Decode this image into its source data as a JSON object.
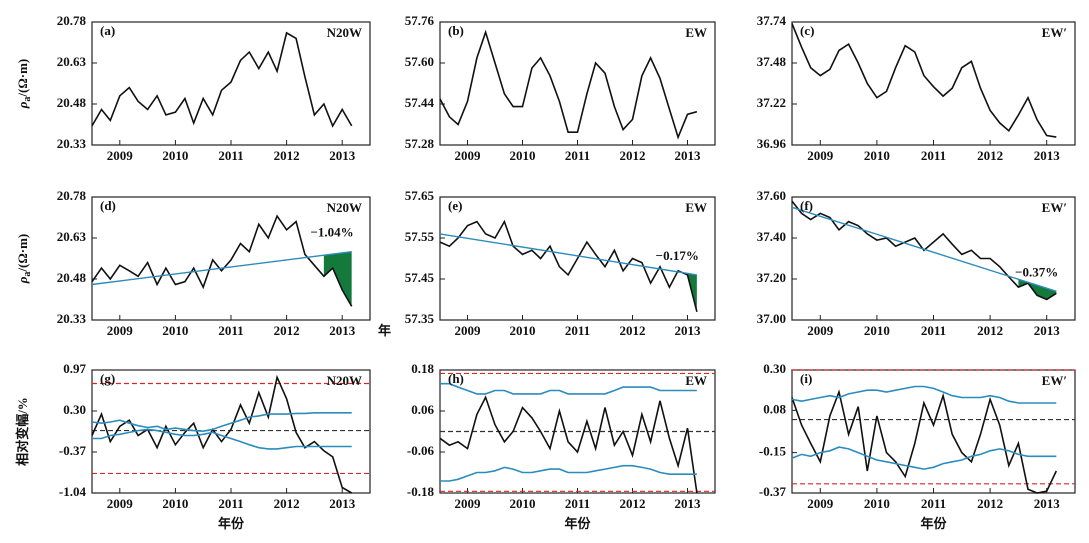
{
  "chart_data": [
    {
      "type": "line",
      "label": "(a)",
      "station": "N20W",
      "ylabel": {
        "symbol": "ρ",
        "sub": "a",
        "unit": "/(Ω·m)"
      },
      "x": [
        2008.5,
        2008.67,
        2008.83,
        2009,
        2009.17,
        2009.33,
        2009.5,
        2009.67,
        2009.83,
        2010,
        2010.17,
        2010.33,
        2010.5,
        2010.67,
        2010.83,
        2011,
        2011.17,
        2011.33,
        2011.5,
        2011.67,
        2011.83,
        2012,
        2012.17,
        2012.33,
        2012.5,
        2012.67,
        2012.83,
        2013,
        2013.17
      ],
      "xlim": [
        2008.5,
        2013.5
      ],
      "xticks": [
        2009,
        2010,
        2011,
        2012,
        2013
      ],
      "ylim": [
        20.33,
        20.78
      ],
      "yticks": [
        20.33,
        20.48,
        20.63,
        20.78
      ],
      "series": [
        {
          "color": "#111111",
          "values": [
            20.4,
            20.46,
            20.42,
            20.51,
            20.54,
            20.49,
            20.46,
            20.51,
            20.44,
            20.45,
            20.5,
            20.41,
            20.5,
            20.44,
            20.53,
            20.56,
            20.64,
            20.67,
            20.61,
            20.67,
            20.6,
            20.74,
            20.72,
            20.58,
            20.44,
            20.48,
            20.4,
            20.46,
            20.4
          ]
        }
      ]
    },
    {
      "type": "line",
      "label": "(b)",
      "station": "EW",
      "x": [
        2008.5,
        2008.67,
        2008.83,
        2009,
        2009.17,
        2009.33,
        2009.5,
        2009.67,
        2009.83,
        2010,
        2010.17,
        2010.33,
        2010.5,
        2010.67,
        2010.83,
        2011,
        2011.17,
        2011.33,
        2011.5,
        2011.67,
        2011.83,
        2012,
        2012.17,
        2012.33,
        2012.5,
        2012.67,
        2012.83,
        2013,
        2013.17
      ],
      "xlim": [
        2008.5,
        2013.5
      ],
      "xticks": [
        2009,
        2010,
        2011,
        2012,
        2013
      ],
      "ylim": [
        57.28,
        57.76
      ],
      "yticks": [
        57.28,
        57.44,
        {
          "value": 57.6,
          "label": "57.60"
        },
        57.76
      ],
      "series": [
        {
          "color": "#111111",
          "values": [
            57.46,
            57.39,
            57.36,
            57.45,
            57.62,
            57.72,
            57.6,
            57.48,
            57.43,
            57.43,
            57.58,
            57.62,
            57.55,
            57.45,
            57.33,
            57.33,
            57.48,
            57.6,
            57.56,
            57.43,
            57.34,
            57.38,
            57.55,
            57.62,
            57.54,
            57.42,
            57.31,
            57.4,
            57.41
          ]
        }
      ]
    },
    {
      "type": "line",
      "label": "(c)",
      "station": "EW′",
      "x": [
        2008.5,
        2008.67,
        2008.83,
        2009,
        2009.17,
        2009.33,
        2009.5,
        2009.67,
        2009.83,
        2010,
        2010.17,
        2010.33,
        2010.5,
        2010.67,
        2010.83,
        2011,
        2011.17,
        2011.33,
        2011.5,
        2011.67,
        2011.83,
        2012,
        2012.17,
        2012.33,
        2012.5,
        2012.67,
        2012.83,
        2013,
        2013.17
      ],
      "xlim": [
        2008.5,
        2013.5
      ],
      "xticks": [
        2009,
        2010,
        2011,
        2012,
        2013
      ],
      "ylim": [
        36.96,
        37.74
      ],
      "yticks": [
        36.96,
        37.22,
        37.48,
        37.74
      ],
      "series": [
        {
          "color": "#111111",
          "values": [
            37.73,
            37.58,
            37.45,
            37.4,
            37.44,
            37.56,
            37.6,
            37.48,
            37.35,
            37.26,
            37.3,
            37.45,
            37.59,
            37.55,
            37.4,
            37.33,
            37.27,
            37.32,
            37.45,
            37.49,
            37.32,
            37.18,
            37.1,
            37.05,
            37.15,
            37.26,
            37.12,
            37.02,
            37.01
          ]
        }
      ]
    },
    {
      "type": "line",
      "label": "(d)",
      "station": "N20W",
      "xunit": "年",
      "annotation": "−1.04%",
      "ylabel": {
        "symbol": "ρ",
        "sub": "a",
        "unit": "/(Ω·m)"
      },
      "x": [
        2008.5,
        2008.67,
        2008.83,
        2009,
        2009.17,
        2009.33,
        2009.5,
        2009.67,
        2009.83,
        2010,
        2010.17,
        2010.33,
        2010.5,
        2010.67,
        2010.83,
        2011,
        2011.17,
        2011.33,
        2011.5,
        2011.67,
        2011.83,
        2012,
        2012.17,
        2012.33,
        2012.5,
        2012.67,
        2012.83,
        2013,
        2013.17
      ],
      "xlim": [
        2008.5,
        2013.5
      ],
      "xticks": [
        2009,
        2010,
        2011,
        2012,
        2013
      ],
      "ylim": [
        20.33,
        20.78
      ],
      "yticks": [
        20.33,
        20.48,
        20.63,
        20.78
      ],
      "series": [
        {
          "color": "#111111",
          "values": [
            20.47,
            20.52,
            20.48,
            20.53,
            20.51,
            20.49,
            20.54,
            20.46,
            20.52,
            20.46,
            20.47,
            20.52,
            20.45,
            20.55,
            20.51,
            20.55,
            20.61,
            20.58,
            20.68,
            20.63,
            20.71,
            20.66,
            20.69,
            20.57,
            20.53,
            20.49,
            20.52,
            20.44,
            20.38
          ]
        }
      ],
      "trend": {
        "color": "#2b8cbe",
        "x": [
          2008.5,
          2013.17
        ],
        "values": [
          20.46,
          20.58
        ]
      },
      "fill_from": 2012.6,
      "fill_color": "#137a3c"
    },
    {
      "type": "line",
      "label": "(e)",
      "station": "EW",
      "annotation": "−0.17%",
      "x": [
        2008.5,
        2008.67,
        2008.83,
        2009,
        2009.17,
        2009.33,
        2009.5,
        2009.67,
        2009.83,
        2010,
        2010.17,
        2010.33,
        2010.5,
        2010.67,
        2010.83,
        2011,
        2011.17,
        2011.33,
        2011.5,
        2011.67,
        2011.83,
        2012,
        2012.17,
        2012.33,
        2012.5,
        2012.67,
        2012.83,
        2013,
        2013.17
      ],
      "xlim": [
        2008.5,
        2013.5
      ],
      "xticks": [
        2009,
        2010,
        2011,
        2012,
        2013
      ],
      "ylim": [
        57.35,
        57.65
      ],
      "yticks": [
        57.35,
        57.45,
        57.55,
        57.65
      ],
      "series": [
        {
          "color": "#111111",
          "values": [
            57.54,
            57.53,
            57.55,
            57.58,
            57.59,
            57.56,
            57.55,
            57.59,
            57.53,
            57.51,
            57.52,
            57.5,
            57.53,
            57.48,
            57.46,
            57.5,
            57.54,
            57.51,
            57.48,
            57.52,
            57.47,
            57.5,
            57.49,
            57.44,
            57.48,
            57.43,
            57.47,
            57.46,
            57.37
          ]
        }
      ],
      "trend": {
        "color": "#2b8cbe",
        "x": [
          2008.5,
          2013.17
        ],
        "values": [
          57.56,
          57.46
        ]
      },
      "fill_from": 2012.9,
      "fill_color": "#137a3c"
    },
    {
      "type": "line",
      "label": "(f)",
      "station": "EW′",
      "annotation": "−0.37%",
      "x": [
        2008.5,
        2008.67,
        2008.83,
        2009,
        2009.17,
        2009.33,
        2009.5,
        2009.67,
        2009.83,
        2010,
        2010.17,
        2010.33,
        2010.5,
        2010.67,
        2010.83,
        2011,
        2011.17,
        2011.33,
        2011.5,
        2011.67,
        2011.83,
        2012,
        2012.17,
        2012.33,
        2012.5,
        2012.67,
        2012.83,
        2013,
        2013.17
      ],
      "xlim": [
        2008.5,
        2013.5
      ],
      "xticks": [
        2009,
        2010,
        2011,
        2012,
        2013
      ],
      "ylim": [
        37.0,
        37.6
      ],
      "yticks": [
        {
          "value": 37.0,
          "label": "37.00"
        },
        {
          "value": 37.2,
          "label": "37.20"
        },
        {
          "value": 37.4,
          "label": "37.40"
        },
        {
          "value": 37.6,
          "label": "37.60"
        }
      ],
      "series": [
        {
          "color": "#111111",
          "values": [
            37.58,
            37.52,
            37.49,
            37.52,
            37.5,
            37.44,
            37.48,
            37.46,
            37.42,
            37.39,
            37.4,
            37.36,
            37.38,
            37.4,
            37.34,
            37.38,
            37.42,
            37.37,
            37.32,
            37.34,
            37.3,
            37.3,
            37.26,
            37.21,
            37.16,
            37.18,
            37.12,
            37.1,
            37.13
          ]
        }
      ],
      "trend": {
        "color": "#2b8cbe",
        "x": [
          2008.5,
          2013.17
        ],
        "values": [
          37.55,
          37.14
        ]
      },
      "fill_from": 2012.4,
      "fill_color": "#137a3c"
    },
    {
      "type": "line",
      "label": "(g)",
      "station": "N20W",
      "ylabel_text": "相对变幅/%",
      "xlabel": "年份",
      "x": [
        2008.5,
        2008.67,
        2008.83,
        2009,
        2009.17,
        2009.33,
        2009.5,
        2009.67,
        2009.83,
        2010,
        2010.17,
        2010.33,
        2010.5,
        2010.67,
        2010.83,
        2011,
        2011.17,
        2011.33,
        2011.5,
        2011.67,
        2011.83,
        2012,
        2012.17,
        2012.33,
        2012.5,
        2012.67,
        2012.83,
        2013,
        2013.17
      ],
      "xlim": [
        2008.5,
        2013.5
      ],
      "xticks": [
        2009,
        2010,
        2011,
        2012,
        2013
      ],
      "ylim": [
        -1.04,
        0.97
      ],
      "yticks": [
        -1.04,
        -0.37,
        {
          "value": 0.3,
          "label": "0.30"
        },
        0.97
      ],
      "series": [
        {
          "color": "#111111",
          "values": [
            -0.1,
            0.25,
            -0.2,
            0.05,
            0.15,
            -0.1,
            0.0,
            -0.3,
            0.05,
            -0.25,
            -0.05,
            0.1,
            -0.3,
            0.0,
            -0.2,
            0.0,
            0.4,
            0.1,
            0.6,
            0.2,
            0.85,
            0.5,
            -0.05,
            -0.3,
            -0.2,
            -0.35,
            -0.45,
            -0.95,
            -1.04
          ]
        },
        {
          "color": "#2b8cbe",
          "values": [
            0.12,
            0.1,
            0.12,
            0.15,
            0.1,
            0.06,
            0.03,
            0.05,
            0.0,
            0.02,
            0.0,
            -0.02,
            -0.03,
            0.0,
            0.05,
            0.1,
            0.15,
            0.2,
            0.22,
            0.25,
            0.25,
            0.25,
            0.26,
            0.26,
            0.27,
            0.27,
            0.27,
            0.27,
            0.27
          ]
        },
        {
          "color": "#2b8cbe",
          "values": [
            -0.15,
            -0.15,
            -0.1,
            -0.08,
            -0.05,
            -0.02,
            0.0,
            -0.02,
            -0.05,
            -0.08,
            -0.1,
            -0.1,
            -0.08,
            -0.05,
            -0.1,
            -0.15,
            -0.2,
            -0.25,
            -0.3,
            -0.32,
            -0.32,
            -0.3,
            -0.28,
            -0.28,
            -0.28,
            -0.28,
            -0.28,
            -0.28,
            -0.28
          ]
        }
      ],
      "hlines": [
        {
          "value": 0.75,
          "color": "#d62728"
        },
        {
          "value": -0.72,
          "color": "#d62728"
        },
        {
          "value": -0.02,
          "color": "#333333"
        }
      ]
    },
    {
      "type": "line",
      "label": "(h)",
      "station": "EW",
      "xlabel": "年份",
      "x": [
        2008.5,
        2008.67,
        2008.83,
        2009,
        2009.17,
        2009.33,
        2009.5,
        2009.67,
        2009.83,
        2010,
        2010.17,
        2010.33,
        2010.5,
        2010.67,
        2010.83,
        2011,
        2011.17,
        2011.33,
        2011.5,
        2011.67,
        2011.83,
        2012,
        2012.17,
        2012.33,
        2012.5,
        2012.67,
        2012.83,
        2013,
        2013.17
      ],
      "xlim": [
        2008.5,
        2013.5
      ],
      "xticks": [
        2009,
        2010,
        2011,
        2012,
        2013
      ],
      "ylim": [
        -0.18,
        0.18
      ],
      "yticks": [
        -0.18,
        -0.06,
        0.06,
        0.18
      ],
      "series": [
        {
          "color": "#111111",
          "values": [
            -0.02,
            -0.04,
            -0.03,
            -0.05,
            0.05,
            0.1,
            0.02,
            -0.03,
            0.0,
            0.07,
            0.04,
            0.0,
            -0.05,
            0.06,
            -0.03,
            -0.06,
            0.03,
            -0.05,
            0.07,
            -0.04,
            0.0,
            -0.07,
            0.05,
            -0.03,
            0.09,
            -0.02,
            -0.1,
            0.01,
            -0.18
          ]
        },
        {
          "color": "#2b8cbe",
          "values": [
            0.14,
            0.14,
            0.13,
            0.12,
            0.11,
            0.11,
            0.12,
            0.12,
            0.11,
            0.11,
            0.11,
            0.11,
            0.12,
            0.12,
            0.11,
            0.11,
            0.11,
            0.11,
            0.11,
            0.12,
            0.13,
            0.13,
            0.13,
            0.13,
            0.12,
            0.12,
            0.12,
            0.12,
            0.12
          ]
        },
        {
          "color": "#2b8cbe",
          "values": [
            -0.145,
            -0.145,
            -0.14,
            -0.13,
            -0.12,
            -0.12,
            -0.115,
            -0.105,
            -0.11,
            -0.12,
            -0.12,
            -0.115,
            -0.11,
            -0.11,
            -0.12,
            -0.12,
            -0.12,
            -0.115,
            -0.11,
            -0.105,
            -0.1,
            -0.1,
            -0.105,
            -0.11,
            -0.12,
            -0.125,
            -0.125,
            -0.125,
            -0.125
          ]
        }
      ],
      "hlines": [
        {
          "value": 0.17,
          "color": "#d62728"
        },
        {
          "value": -0.175,
          "color": "#d62728"
        },
        {
          "value": 0.0,
          "color": "#333333"
        }
      ]
    },
    {
      "type": "line",
      "label": "(i)",
      "station": "EW′",
      "xlabel": "年份",
      "x": [
        2008.5,
        2008.67,
        2008.83,
        2009,
        2009.17,
        2009.33,
        2009.5,
        2009.67,
        2009.83,
        2010,
        2010.17,
        2010.33,
        2010.5,
        2010.67,
        2010.83,
        2011,
        2011.17,
        2011.33,
        2011.5,
        2011.67,
        2011.83,
        2012,
        2012.17,
        2012.33,
        2012.5,
        2012.67,
        2012.83,
        2013,
        2013.17
      ],
      "xlim": [
        2008.5,
        2013.5
      ],
      "xticks": [
        2009,
        2010,
        2011,
        2012,
        2013
      ],
      "ylim": [
        -0.37,
        0.3
      ],
      "yticks": [
        -0.37,
        -0.15,
        0.08,
        {
          "value": 0.3,
          "label": "0.30"
        }
      ],
      "series": [
        {
          "color": "#111111",
          "values": [
            0.15,
            0.0,
            -0.1,
            -0.2,
            0.05,
            0.18,
            -0.05,
            0.1,
            -0.25,
            0.05,
            -0.15,
            -0.2,
            -0.28,
            -0.1,
            0.12,
            0.0,
            0.16,
            -0.05,
            -0.15,
            -0.2,
            -0.05,
            0.14,
            0.0,
            -0.22,
            -0.1,
            -0.35,
            -0.37,
            -0.36,
            -0.25
          ]
        },
        {
          "color": "#2b8cbe",
          "values": [
            0.14,
            0.13,
            0.14,
            0.15,
            0.16,
            0.15,
            0.17,
            0.18,
            0.19,
            0.19,
            0.18,
            0.19,
            0.2,
            0.21,
            0.21,
            0.2,
            0.18,
            0.16,
            0.15,
            0.15,
            0.15,
            0.16,
            0.15,
            0.13,
            0.12,
            0.12,
            0.12,
            0.12,
            0.12
          ]
        },
        {
          "color": "#2b8cbe",
          "values": [
            -0.18,
            -0.16,
            -0.17,
            -0.15,
            -0.14,
            -0.12,
            -0.13,
            -0.15,
            -0.17,
            -0.19,
            -0.2,
            -0.21,
            -0.22,
            -0.23,
            -0.24,
            -0.23,
            -0.21,
            -0.2,
            -0.19,
            -0.17,
            -0.16,
            -0.14,
            -0.13,
            -0.14,
            -0.16,
            -0.17,
            -0.17,
            -0.17,
            -0.17
          ]
        }
      ],
      "hlines": [
        {
          "value": 0.3,
          "color": "#d62728"
        },
        {
          "value": -0.32,
          "color": "#d62728"
        },
        {
          "value": 0.03,
          "color": "#333333"
        }
      ]
    }
  ]
}
